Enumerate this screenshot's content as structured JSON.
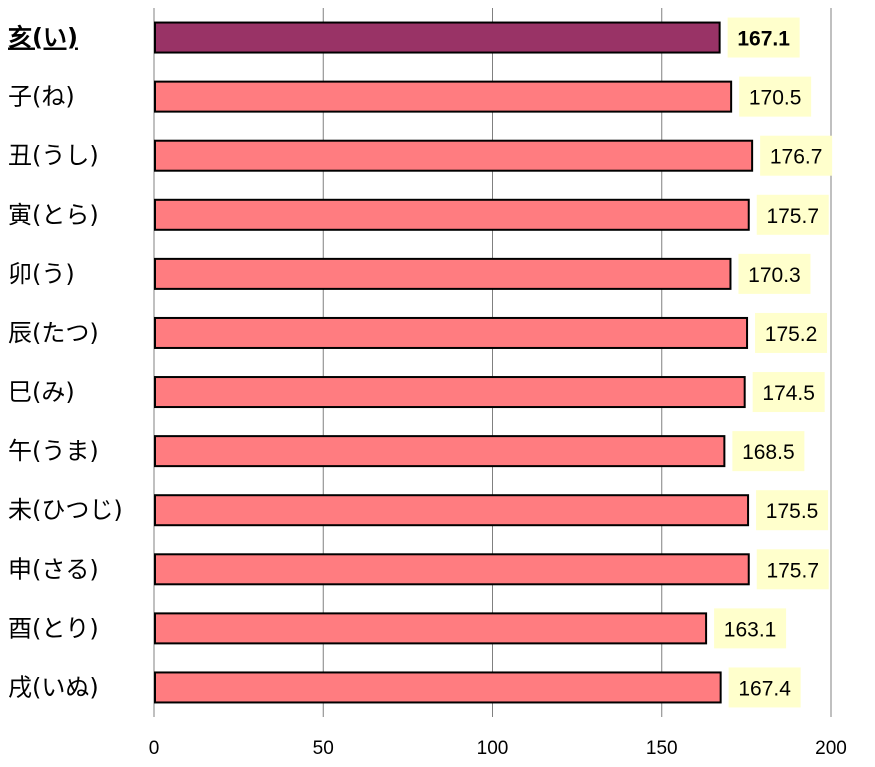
{
  "chart_data": {
    "type": "bar",
    "orientation": "horizontal",
    "categories": [
      "亥(い)",
      "子(ね)",
      "丑(うし)",
      "寅(とら)",
      "卯(う)",
      "辰(たつ)",
      "巳(み)",
      "午(うま)",
      "未(ひつじ)",
      "申(さる)",
      "酉(とり)",
      "戌(いぬ)"
    ],
    "values": [
      167.1,
      170.5,
      176.7,
      175.7,
      170.3,
      175.2,
      174.5,
      168.5,
      175.5,
      175.7,
      163.1,
      167.4
    ],
    "value_labels": [
      "167.1",
      "170.5",
      "176.7",
      "175.7",
      "170.3",
      "175.2",
      "174.5",
      "168.5",
      "175.5",
      "175.7",
      "163.1",
      "167.4"
    ],
    "highlighted_index": 0,
    "xlim": [
      0,
      200
    ],
    "xticks": [
      0,
      50,
      100,
      150,
      200
    ],
    "grid": true,
    "legend": "none",
    "colors": {
      "bar": "#ff7c80",
      "bar_highlight": "#993366",
      "bar_border": "#000000",
      "label_bg": "#ffffcc",
      "gridline": "#808080"
    }
  }
}
